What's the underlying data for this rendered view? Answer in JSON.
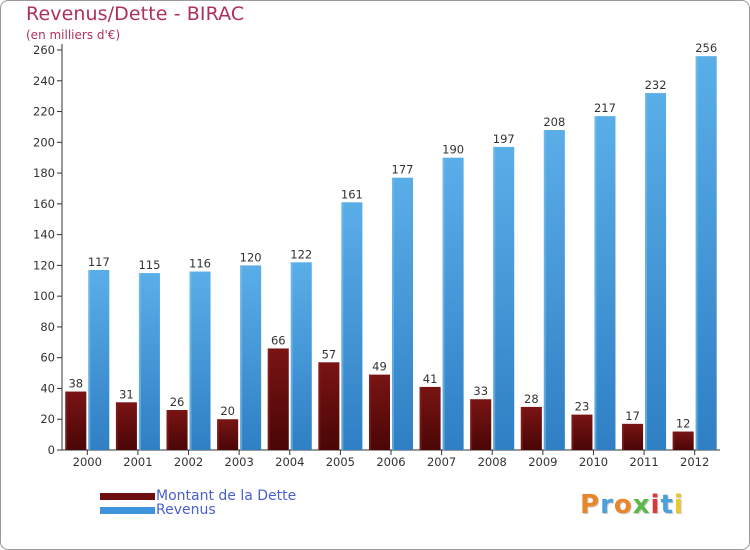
{
  "title": "Revenus/Dette - BIRAC",
  "subtitle": "(en milliers d'€)",
  "logo_text": "Proxiti",
  "colors": {
    "title": "#b0305c",
    "dette_top": "#7a1414",
    "dette_bottom": "#4a0606",
    "revenus_top": "#5aaee8",
    "revenus_bottom": "#2f7fc4",
    "legend_text": "#4a5fd0"
  },
  "legend": {
    "items": [
      {
        "label": "Montant de la Dette",
        "color": "#6e0f0f"
      },
      {
        "label": "Revenus",
        "color": "#3f95dc"
      }
    ]
  },
  "chart_data": {
    "type": "bar",
    "title": "Revenus/Dette - BIRAC",
    "subtitle": "(en milliers d'€)",
    "categories": [
      "2000",
      "2001",
      "2002",
      "2003",
      "2004",
      "2005",
      "2006",
      "2007",
      "2008",
      "2009",
      "2010",
      "2011",
      "2012"
    ],
    "series": [
      {
        "name": "Montant de la Dette",
        "values": [
          38,
          31,
          26,
          20,
          66,
          57,
          49,
          41,
          33,
          28,
          23,
          17,
          12
        ]
      },
      {
        "name": "Revenus",
        "values": [
          117,
          115,
          116,
          120,
          122,
          161,
          177,
          190,
          197,
          208,
          217,
          232,
          256
        ]
      }
    ],
    "ylim": [
      0,
      260
    ],
    "yticks": [
      0,
      20,
      40,
      60,
      80,
      100,
      120,
      140,
      160,
      180,
      200,
      220,
      240,
      260
    ],
    "grid": false,
    "legend_position": "bottom-left"
  }
}
